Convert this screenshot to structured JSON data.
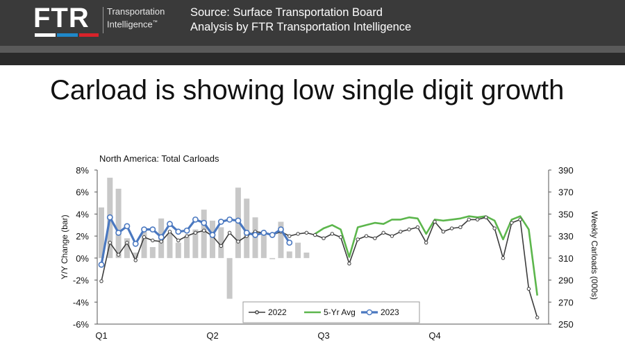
{
  "header": {
    "logo_text": "FTR",
    "logo_tagline_1": "Transportation",
    "logo_tagline_2": "Intelligence",
    "source_line_1": "Source: Surface Transportation Board",
    "source_line_2": "Analysis by FTR Transportation Intelligence",
    "colors": {
      "bar_white": "#ffffff",
      "bar_blue": "#1f88c9",
      "bar_red": "#d8232a"
    }
  },
  "slide": {
    "title": "Carload is showing low single digit growth"
  },
  "chart_data": {
    "type": "line",
    "title": "North America: Total Carloads",
    "ylabel": "Y/Y Change (bar)",
    "y2label": "Weekly Carloads (000s)",
    "ylim": [
      -6,
      8
    ],
    "y_ticks": [
      "8%",
      "6%",
      "4%",
      "2%",
      "0%",
      "-2%",
      "-4%",
      "-6%"
    ],
    "y2lim": [
      250,
      390
    ],
    "y2_ticks": [
      "390",
      "370",
      "350",
      "330",
      "310",
      "290",
      "270",
      "250"
    ],
    "x_ticks": [
      "Q1",
      "Q2",
      "Q3",
      "Q4"
    ],
    "weeks": 52,
    "legend_placement": "bottom-center",
    "bars": {
      "name": "Y/Y Change",
      "color": "#c8c8c8",
      "values": [
        4.6,
        7.3,
        6.3,
        1.8,
        0.5,
        2.4,
        1.0,
        3.6,
        2.2,
        1.4,
        2.0,
        2.6,
        4.4,
        3.4,
        2.8,
        -3.7,
        6.4,
        5.4,
        3.7,
        2.2,
        -0.1,
        3.3,
        0.6,
        1.4,
        0.5
      ]
    },
    "series": [
      {
        "name": "2022",
        "color": "#3c3c3c",
        "values": [
          289,
          324,
          313,
          324,
          308,
          329,
          326,
          325,
          334,
          326,
          330,
          333,
          335,
          330,
          321,
          333,
          325,
          330,
          334,
          333,
          331,
          334,
          330,
          332,
          333,
          331,
          328,
          332,
          329,
          305,
          327,
          330,
          328,
          333,
          330,
          334,
          336,
          338,
          324,
          343,
          334,
          337,
          338,
          345,
          345,
          347,
          337,
          310,
          342,
          345,
          282,
          256
        ]
      },
      {
        "name": "5-Yr Avg",
        "color": "#5cb64c",
        "values": [
          null,
          null,
          null,
          null,
          null,
          null,
          null,
          null,
          null,
          null,
          null,
          null,
          null,
          null,
          null,
          null,
          null,
          null,
          null,
          null,
          null,
          null,
          null,
          null,
          null,
          332,
          337,
          340,
          336,
          311,
          338,
          340,
          342,
          341,
          345,
          345,
          347,
          346,
          332,
          345,
          344,
          345,
          346,
          348,
          347,
          348,
          344,
          327,
          345,
          348,
          336,
          276
        ]
      },
      {
        "name": "2023",
        "color": "#4a78c0",
        "values": [
          304,
          347,
          333,
          339,
          323,
          336,
          336,
          329,
          341,
          334,
          335,
          345,
          342,
          331,
          343,
          345,
          344,
          333,
          331,
          333,
          331,
          336,
          324
        ]
      }
    ]
  }
}
